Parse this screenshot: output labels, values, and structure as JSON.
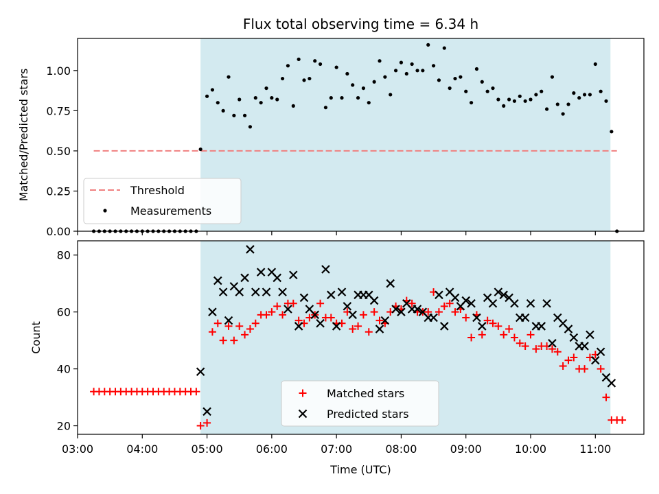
{
  "chart_data": [
    {
      "type": "scatter",
      "title": "Flux total observing time = 6.34 h",
      "xlabel": "",
      "ylabel": "Matched/Predicted stars",
      "xlim": [
        "03:00",
        "11:45"
      ],
      "ylim": [
        0,
        1.2
      ],
      "yticks": [
        "0.00",
        "0.25",
        "0.50",
        "0.75",
        "1.00"
      ],
      "shaded_span": [
        "04:54",
        "11:14"
      ],
      "shade_color": "#d3eaf0",
      "legend_position": "lower-left",
      "series": [
        {
          "name": "Threshold",
          "style": "dashed-line",
          "color": "#f08080",
          "x": [
            "03:15",
            "11:20"
          ],
          "y": [
            0.5,
            0.5
          ]
        },
        {
          "name": "Measurements",
          "style": "dot",
          "color": "#000000",
          "x": [
            "03:15",
            "03:20",
            "03:25",
            "03:30",
            "03:35",
            "03:40",
            "03:45",
            "03:50",
            "03:55",
            "04:00",
            "04:05",
            "04:10",
            "04:15",
            "04:20",
            "04:25",
            "04:30",
            "04:35",
            "04:40",
            "04:45",
            "04:50",
            "04:54",
            "05:00",
            "05:05",
            "05:10",
            "05:15",
            "05:20",
            "05:25",
            "05:30",
            "05:35",
            "05:40",
            "05:45",
            "05:50",
            "05:55",
            "06:00",
            "06:05",
            "06:10",
            "06:15",
            "06:20",
            "06:25",
            "06:30",
            "06:35",
            "06:40",
            "06:45",
            "06:50",
            "06:55",
            "07:00",
            "07:05",
            "07:10",
            "07:15",
            "07:20",
            "07:25",
            "07:30",
            "07:35",
            "07:40",
            "07:45",
            "07:50",
            "07:55",
            "08:00",
            "08:05",
            "08:10",
            "08:15",
            "08:20",
            "08:25",
            "08:30",
            "08:35",
            "08:40",
            "08:45",
            "08:50",
            "08:55",
            "09:00",
            "09:05",
            "09:10",
            "09:15",
            "09:20",
            "09:25",
            "09:30",
            "09:35",
            "09:40",
            "09:45",
            "09:50",
            "09:55",
            "10:00",
            "10:05",
            "10:10",
            "10:15",
            "10:20",
            "10:25",
            "10:30",
            "10:35",
            "10:40",
            "10:45",
            "10:50",
            "10:55",
            "11:00",
            "11:05",
            "11:10",
            "11:15",
            "11:20"
          ],
          "y": [
            0,
            0,
            0,
            0,
            0,
            0,
            0,
            0,
            0,
            0,
            0,
            0,
            0,
            0,
            0,
            0,
            0,
            0,
            0,
            0,
            0.51,
            0.84,
            0.88,
            0.8,
            0.75,
            0.96,
            0.72,
            0.82,
            0.72,
            0.65,
            0.83,
            0.8,
            0.89,
            0.83,
            0.82,
            0.95,
            1.03,
            0.78,
            1.07,
            0.94,
            0.95,
            1.06,
            1.04,
            0.77,
            0.83,
            1.02,
            0.83,
            0.98,
            0.91,
            0.83,
            0.89,
            0.8,
            0.93,
            1.06,
            0.96,
            0.85,
            1.0,
            1.05,
            0.98,
            1.04,
            1.0,
            1.0,
            1.16,
            1.03,
            0.94,
            1.14,
            0.89,
            0.95,
            0.96,
            0.87,
            0.8,
            1.01,
            0.93,
            0.87,
            0.89,
            0.82,
            0.78,
            0.82,
            0.81,
            0.84,
            0.81,
            0.82,
            0.85,
            0.87,
            0.76,
            0.96,
            0.79,
            0.73,
            0.79,
            0.86,
            0.83,
            0.85,
            0.85,
            1.04,
            0.87,
            0.81,
            0.62,
            0
          ]
        }
      ]
    },
    {
      "type": "scatter",
      "title": "",
      "xlabel": "Time (UTC)",
      "ylabel": "Count",
      "xlim": [
        "03:00",
        "11:45"
      ],
      "ylim": [
        17,
        85
      ],
      "xticks": [
        "03:00",
        "04:00",
        "05:00",
        "06:00",
        "07:00",
        "08:00",
        "09:00",
        "10:00",
        "11:00"
      ],
      "yticks": [
        "20",
        "40",
        "60",
        "80"
      ],
      "shaded_span": [
        "04:54",
        "11:14"
      ],
      "shade_color": "#d3eaf0",
      "legend_position": "lower-center",
      "series": [
        {
          "name": "Matched stars",
          "style": "plus",
          "color": "#ff0000",
          "x": [
            "03:15",
            "03:20",
            "03:25",
            "03:30",
            "03:35",
            "03:40",
            "03:45",
            "03:50",
            "03:55",
            "04:00",
            "04:05",
            "04:10",
            "04:15",
            "04:20",
            "04:25",
            "04:30",
            "04:35",
            "04:40",
            "04:45",
            "04:50",
            "04:54",
            "05:00",
            "05:05",
            "05:10",
            "05:15",
            "05:20",
            "05:25",
            "05:30",
            "05:35",
            "05:40",
            "05:45",
            "05:50",
            "05:55",
            "06:00",
            "06:05",
            "06:10",
            "06:15",
            "06:20",
            "06:25",
            "06:30",
            "06:35",
            "06:40",
            "06:45",
            "06:50",
            "06:55",
            "07:00",
            "07:05",
            "07:10",
            "07:15",
            "07:20",
            "07:25",
            "07:30",
            "07:35",
            "07:40",
            "07:45",
            "07:50",
            "07:55",
            "08:00",
            "08:05",
            "08:10",
            "08:15",
            "08:20",
            "08:25",
            "08:30",
            "08:35",
            "08:40",
            "08:45",
            "08:50",
            "08:55",
            "09:00",
            "09:05",
            "09:10",
            "09:15",
            "09:20",
            "09:25",
            "09:30",
            "09:35",
            "09:40",
            "09:45",
            "09:50",
            "09:55",
            "10:00",
            "10:05",
            "10:10",
            "10:15",
            "10:20",
            "10:25",
            "10:30",
            "10:35",
            "10:40",
            "10:45",
            "10:50",
            "10:55",
            "11:00",
            "11:05",
            "11:10",
            "11:15",
            "11:20",
            "11:25"
          ],
          "y": [
            32,
            32,
            32,
            32,
            32,
            32,
            32,
            32,
            32,
            32,
            32,
            32,
            32,
            32,
            32,
            32,
            32,
            32,
            32,
            32,
            20,
            21,
            53,
            56,
            50,
            55,
            50,
            55,
            52,
            54,
            56,
            59,
            59,
            60,
            62,
            59,
            63,
            63,
            57,
            56,
            58,
            59,
            63,
            58,
            58,
            56,
            56,
            60,
            54,
            55,
            59,
            53,
            60,
            57,
            56,
            60,
            62,
            61,
            64,
            63,
            60,
            60,
            60,
            67,
            60,
            62,
            63,
            60,
            61,
            58,
            51,
            59,
            52,
            57,
            56,
            55,
            52,
            54,
            51,
            49,
            48,
            52,
            47,
            48,
            48,
            47,
            46,
            41,
            43,
            44,
            40,
            40,
            44,
            45,
            40,
            30,
            22,
            22,
            22
          ],
          "y_note": ""
        },
        {
          "name": "Predicted stars",
          "style": "x",
          "color": "#000000",
          "x": [
            "04:54",
            "05:00",
            "05:05",
            "05:10",
            "05:15",
            "05:20",
            "05:25",
            "05:30",
            "05:35",
            "05:40",
            "05:45",
            "05:50",
            "05:55",
            "06:00",
            "06:05",
            "06:10",
            "06:15",
            "06:20",
            "06:25",
            "06:30",
            "06:35",
            "06:40",
            "06:45",
            "06:50",
            "06:55",
            "07:00",
            "07:05",
            "07:10",
            "07:15",
            "07:20",
            "07:25",
            "07:30",
            "07:35",
            "07:40",
            "07:45",
            "07:50",
            "07:55",
            "08:00",
            "08:05",
            "08:10",
            "08:15",
            "08:20",
            "08:25",
            "08:30",
            "08:35",
            "08:40",
            "08:45",
            "08:50",
            "08:55",
            "09:00",
            "09:05",
            "09:10",
            "09:15",
            "09:20",
            "09:25",
            "09:30",
            "09:35",
            "09:40",
            "09:45",
            "09:50",
            "09:55",
            "10:00",
            "10:05",
            "10:10",
            "10:15",
            "10:20",
            "10:25",
            "10:30",
            "10:35",
            "10:40",
            "10:45",
            "10:50",
            "10:55",
            "11:00",
            "11:05",
            "11:10",
            "11:15"
          ],
          "y": [
            39,
            25,
            60,
            71,
            67,
            57,
            69,
            67,
            72,
            82,
            67,
            74,
            67,
            74,
            72,
            67,
            61,
            73,
            55,
            65,
            61,
            59,
            56,
            75,
            66,
            55,
            67,
            62,
            59,
            66,
            66,
            66,
            64,
            54,
            57,
            70,
            61,
            60,
            63,
            61,
            61,
            60,
            58,
            58,
            66,
            55,
            67,
            65,
            62,
            64,
            63,
            58,
            55,
            65,
            63,
            67,
            66,
            65,
            63,
            58,
            58,
            63,
            55,
            55,
            63,
            49,
            58,
            56,
            54,
            51,
            48,
            48,
            52,
            43,
            46,
            37,
            35
          ],
          "y_note": ""
        }
      ]
    }
  ]
}
